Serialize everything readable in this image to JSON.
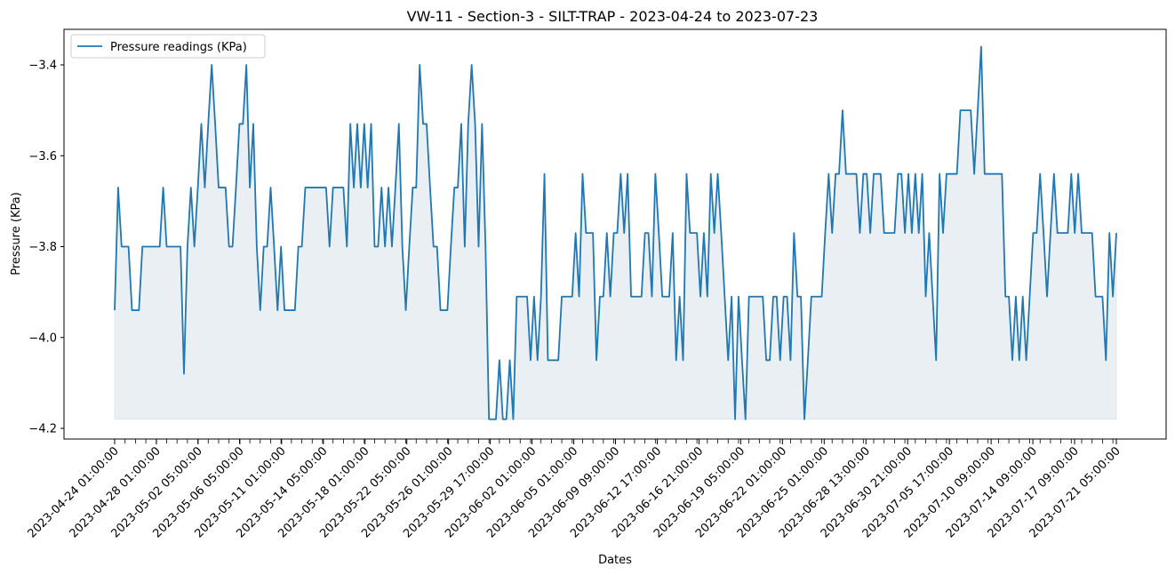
{
  "chart_data": {
    "type": "area",
    "title": "VW-11 - Section-3 - SILT-TRAP - 2023-04-24 to 2023-07-23",
    "xlabel": "Dates",
    "ylabel": "Pressure (KPa)",
    "ylim": [
      -4.22,
      -3.33
    ],
    "yticks": [
      -4.2,
      -4.0,
      -3.8,
      -3.6,
      -3.4
    ],
    "ytick_labels": [
      "−4.2",
      "−4.0",
      "−3.8",
      "−3.6",
      "−3.4"
    ],
    "xtick_labels": [
      "2023-04-24 01:00:00",
      "2023-04-28 01:00:00",
      "2023-05-02 05:00:00",
      "2023-05-06 05:00:00",
      "2023-05-11 01:00:00",
      "2023-05-14 05:00:00",
      "2023-05-18 01:00:00",
      "2023-05-22 05:00:00",
      "2023-05-26 01:00:00",
      "2023-05-29 17:00:00",
      "2023-06-02 01:00:00",
      "2023-06-05 01:00:00",
      "2023-06-09 09:00:00",
      "2023-06-12 17:00:00",
      "2023-06-16 21:00:00",
      "2023-06-19 05:00:00",
      "2023-06-22 01:00:00",
      "2023-06-25 01:00:00",
      "2023-06-28 13:00:00",
      "2023-06-30 21:00:00",
      "2023-07-05 17:00:00",
      "2023-07-10 09:00:00",
      "2023-07-14 09:00:00",
      "2023-07-17 09:00:00",
      "2023-07-21 05:00:00"
    ],
    "grid": false,
    "legend_position": "upper left",
    "fill_baseline": -4.18,
    "series": [
      {
        "name": "Pressure readings (KPa)",
        "color": "#1f77b4",
        "fill_color": "#e9eff2",
        "values": [
          -3.94,
          -3.67,
          -3.8,
          -3.8,
          -3.8,
          -3.94,
          -3.94,
          -3.94,
          -3.8,
          -3.8,
          -3.8,
          -3.8,
          -3.8,
          -3.8,
          -3.67,
          -3.8,
          -3.8,
          -3.8,
          -3.8,
          -3.8,
          -4.08,
          -3.8,
          -3.67,
          -3.8,
          -3.67,
          -3.53,
          -3.67,
          -3.53,
          -3.4,
          -3.53,
          -3.67,
          -3.67,
          -3.67,
          -3.8,
          -3.8,
          -3.67,
          -3.53,
          -3.53,
          -3.4,
          -3.67,
          -3.53,
          -3.8,
          -3.94,
          -3.8,
          -3.8,
          -3.67,
          -3.8,
          -3.94,
          -3.8,
          -3.94,
          -3.94,
          -3.94,
          -3.94,
          -3.8,
          -3.8,
          -3.67,
          -3.67,
          -3.67,
          -3.67,
          -3.67,
          -3.67,
          -3.67,
          -3.8,
          -3.67,
          -3.67,
          -3.67,
          -3.67,
          -3.8,
          -3.53,
          -3.67,
          -3.53,
          -3.67,
          -3.53,
          -3.67,
          -3.53,
          -3.8,
          -3.8,
          -3.67,
          -3.8,
          -3.67,
          -3.8,
          -3.67,
          -3.53,
          -3.8,
          -3.94,
          -3.8,
          -3.67,
          -3.67,
          -3.4,
          -3.53,
          -3.53,
          -3.67,
          -3.8,
          -3.8,
          -3.94,
          -3.94,
          -3.94,
          -3.8,
          -3.67,
          -3.67,
          -3.53,
          -3.8,
          -3.53,
          -3.4,
          -3.53,
          -3.8,
          -3.53,
          -3.8,
          -4.18,
          -4.18,
          -4.18,
          -4.05,
          -4.18,
          -4.18,
          -4.05,
          -4.18,
          -3.91,
          -3.91,
          -3.91,
          -3.91,
          -4.05,
          -3.91,
          -4.05,
          -3.91,
          -3.64,
          -4.05,
          -4.05,
          -4.05,
          -4.05,
          -3.91,
          -3.91,
          -3.91,
          -3.91,
          -3.77,
          -3.91,
          -3.64,
          -3.77,
          -3.77,
          -3.77,
          -4.05,
          -3.91,
          -3.91,
          -3.77,
          -3.91,
          -3.77,
          -3.77,
          -3.64,
          -3.77,
          -3.64,
          -3.91,
          -3.91,
          -3.91,
          -3.91,
          -3.77,
          -3.77,
          -3.91,
          -3.64,
          -3.77,
          -3.91,
          -3.91,
          -3.91,
          -3.77,
          -4.05,
          -3.91,
          -4.05,
          -3.64,
          -3.77,
          -3.77,
          -3.77,
          -3.91,
          -3.77,
          -3.91,
          -3.64,
          -3.77,
          -3.64,
          -3.77,
          -3.91,
          -4.05,
          -3.91,
          -4.18,
          -3.91,
          -4.05,
          -4.18,
          -3.91,
          -3.91,
          -3.91,
          -3.91,
          -3.91,
          -4.05,
          -4.05,
          -3.91,
          -3.91,
          -4.05,
          -3.91,
          -3.91,
          -4.05,
          -3.77,
          -3.91,
          -3.91,
          -4.18,
          -4.05,
          -3.91,
          -3.91,
          -3.91,
          -3.91,
          -3.77,
          -3.64,
          -3.77,
          -3.64,
          -3.64,
          -3.5,
          -3.64,
          -3.64,
          -3.64,
          -3.64,
          -3.77,
          -3.64,
          -3.64,
          -3.77,
          -3.64,
          -3.64,
          -3.64,
          -3.77,
          -3.77,
          -3.77,
          -3.77,
          -3.64,
          -3.64,
          -3.77,
          -3.64,
          -3.77,
          -3.64,
          -3.77,
          -3.64,
          -3.91,
          -3.77,
          -3.91,
          -4.05,
          -3.64,
          -3.77,
          -3.64,
          -3.64,
          -3.64,
          -3.64,
          -3.5,
          -3.5,
          -3.5,
          -3.5,
          -3.64,
          -3.5,
          -3.36,
          -3.64,
          -3.64,
          -3.64,
          -3.64,
          -3.64,
          -3.64,
          -3.91,
          -3.91,
          -4.05,
          -3.91,
          -4.05,
          -3.91,
          -4.05,
          -3.91,
          -3.77,
          -3.77,
          -3.64,
          -3.77,
          -3.91,
          -3.77,
          -3.64,
          -3.77,
          -3.77,
          -3.77,
          -3.77,
          -3.64,
          -3.77,
          -3.64,
          -3.77,
          -3.77,
          -3.77,
          -3.77,
          -3.91,
          -3.91,
          -3.91,
          -4.05,
          -3.77,
          -3.91,
          -3.77
        ]
      }
    ]
  }
}
